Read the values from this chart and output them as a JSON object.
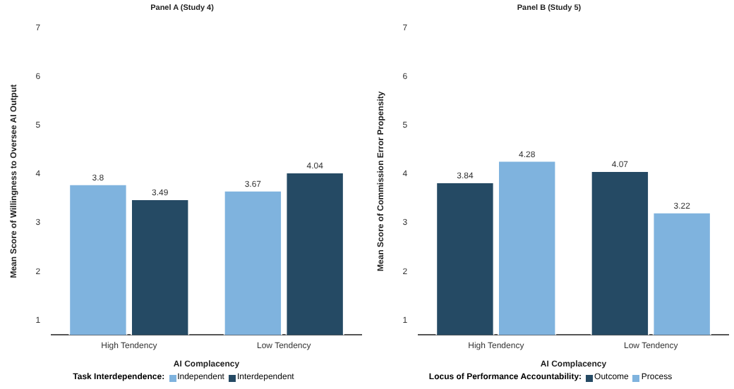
{
  "chart_data": [
    {
      "type": "bar",
      "title": "Panel A (Study 4)",
      "xlabel": "AI Complacency",
      "ylabel": "Mean Score of Willingness to Oversee AI Output",
      "legend_title": "Task Interdependence:",
      "categories": [
        "High Tendency",
        "Low Tendency"
      ],
      "series": [
        {
          "name": "Independent",
          "color": "#7fb3de",
          "values": [
            3.8,
            3.67
          ]
        },
        {
          "name": "Interdependent",
          "color": "#254a64",
          "values": [
            3.49,
            4.04
          ]
        }
      ],
      "ylim": [
        0.7,
        7
      ],
      "yticks": [
        1,
        2,
        3,
        4,
        5,
        6,
        7
      ],
      "grid": false,
      "legend": "bottom",
      "data_labels": true
    },
    {
      "type": "bar",
      "title": "Panel B (Study 5)",
      "xlabel": "AI Complacency",
      "ylabel": "Mean Score of Commission Error Propensity",
      "legend_title": "Locus of Performance Accountability:",
      "categories": [
        "High Tendency",
        "Low Tendency"
      ],
      "series": [
        {
          "name": "Outcome",
          "color": "#254a64",
          "values": [
            3.84,
            4.07
          ]
        },
        {
          "name": "Process",
          "color": "#7fb3de",
          "values": [
            4.28,
            3.22
          ]
        }
      ],
      "ylim": [
        0.7,
        7
      ],
      "yticks": [
        1,
        2,
        3,
        4,
        5,
        6,
        7
      ],
      "grid": false,
      "legend": "bottom",
      "data_labels": true
    }
  ]
}
